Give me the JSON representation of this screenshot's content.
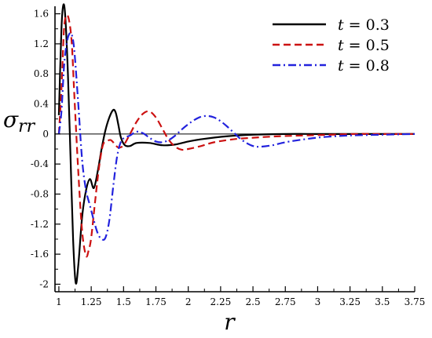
{
  "chart_data": {
    "type": "line",
    "xlabel": "r",
    "ylabel_main": "σ",
    "ylabel_sub": "rr",
    "xlim": [
      0.97,
      3.75
    ],
    "ylim": [
      -2.1,
      1.7
    ],
    "xticks": [
      1,
      1.25,
      1.5,
      1.75,
      2,
      2.25,
      2.5,
      2.75,
      3,
      3.25,
      3.5,
      3.75
    ],
    "xtick_labels": [
      "1",
      "1.25",
      "1.5",
      "1.75",
      "2",
      "2.25",
      "2.5",
      "2.75",
      "3",
      "3.25",
      "3.5",
      "3.75"
    ],
    "yticks": [
      1.6,
      1.2,
      0.8,
      0.4,
      0,
      -0.4,
      -0.8,
      -1.2,
      -1.6,
      -2
    ],
    "ytick_labels": [
      "1.6",
      "1.2",
      "0.8",
      "0.4",
      "0",
      "-0.4",
      "-0.8",
      "-1.2",
      "-1.6",
      "-2"
    ],
    "legend_position": "top-right",
    "series": [
      {
        "name": "t = 0.3",
        "legend_var": "t",
        "legend_rest": " = 0.3",
        "color": "#000000",
        "dash": "",
        "x": [
          1.0,
          1.02,
          1.035,
          1.05,
          1.07,
          1.09,
          1.11,
          1.13,
          1.15,
          1.18,
          1.21,
          1.24,
          1.27,
          1.3,
          1.33,
          1.36,
          1.39,
          1.42,
          1.44,
          1.46,
          1.48,
          1.51,
          1.55,
          1.6,
          1.7,
          1.8,
          1.9,
          2.0,
          2.1,
          2.3,
          2.5,
          2.75,
          3.0,
          3.25,
          3.5,
          3.75
        ],
        "y": [
          0.25,
          1.4,
          1.72,
          1.55,
          0.8,
          -0.3,
          -1.4,
          -1.98,
          -1.75,
          -1.1,
          -0.75,
          -0.6,
          -0.72,
          -0.5,
          -0.2,
          0.05,
          0.22,
          0.32,
          0.28,
          0.12,
          -0.05,
          -0.15,
          -0.16,
          -0.12,
          -0.12,
          -0.15,
          -0.14,
          -0.1,
          -0.07,
          -0.03,
          -0.01,
          0.0,
          0.0,
          0.0,
          0.0,
          0.0
        ]
      },
      {
        "name": "t = 0.5",
        "legend_var": "t",
        "legend_rest": " = 0.5",
        "color": "#cc1111",
        "dash": "9,5",
        "x": [
          1.0,
          1.02,
          1.04,
          1.06,
          1.08,
          1.1,
          1.12,
          1.15,
          1.18,
          1.21,
          1.23,
          1.25,
          1.28,
          1.31,
          1.34,
          1.37,
          1.4,
          1.43,
          1.46,
          1.5,
          1.55,
          1.6,
          1.65,
          1.7,
          1.75,
          1.8,
          1.85,
          1.9,
          1.95,
          2.0,
          2.1,
          2.2,
          2.35,
          2.5,
          2.7,
          2.9,
          3.1,
          3.3,
          3.5,
          3.75
        ],
        "y": [
          0.0,
          0.6,
          1.4,
          1.58,
          1.5,
          1.2,
          0.5,
          -0.5,
          -1.3,
          -1.62,
          -1.55,
          -1.38,
          -0.9,
          -0.45,
          -0.15,
          -0.1,
          -0.08,
          -0.13,
          -0.18,
          -0.15,
          0.0,
          0.16,
          0.27,
          0.3,
          0.22,
          0.07,
          -0.08,
          -0.17,
          -0.21,
          -0.2,
          -0.16,
          -0.11,
          -0.07,
          -0.05,
          -0.03,
          -0.02,
          -0.01,
          0.0,
          0.0,
          0.0
        ]
      },
      {
        "name": "t = 0.8",
        "legend_var": "t",
        "legend_rest": " = 0.8",
        "color": "#2222dd",
        "dash": "10,4,2,4",
        "x": [
          1.0,
          1.02,
          1.04,
          1.06,
          1.08,
          1.1,
          1.12,
          1.15,
          1.18,
          1.21,
          1.24,
          1.27,
          1.3,
          1.33,
          1.36,
          1.39,
          1.42,
          1.45,
          1.48,
          1.51,
          1.55,
          1.6,
          1.65,
          1.7,
          1.75,
          1.8,
          1.85,
          1.9,
          1.95,
          2.0,
          2.05,
          2.1,
          2.15,
          2.2,
          2.25,
          2.3,
          2.35,
          2.4,
          2.45,
          2.5,
          2.55,
          2.65,
          2.75,
          2.9,
          3.05,
          3.25,
          3.5,
          3.75
        ],
        "y": [
          0.0,
          0.3,
          0.9,
          1.2,
          1.33,
          1.32,
          1.1,
          0.4,
          -0.35,
          -0.75,
          -0.95,
          -1.15,
          -1.32,
          -1.4,
          -1.38,
          -1.15,
          -0.7,
          -0.3,
          -0.1,
          -0.05,
          -0.02,
          0.03,
          0.01,
          -0.05,
          -0.1,
          -0.11,
          -0.08,
          -0.02,
          0.06,
          0.13,
          0.19,
          0.23,
          0.24,
          0.22,
          0.17,
          0.1,
          0.02,
          -0.06,
          -0.12,
          -0.16,
          -0.17,
          -0.15,
          -0.11,
          -0.07,
          -0.04,
          -0.02,
          -0.01,
          0.0
        ]
      }
    ]
  }
}
